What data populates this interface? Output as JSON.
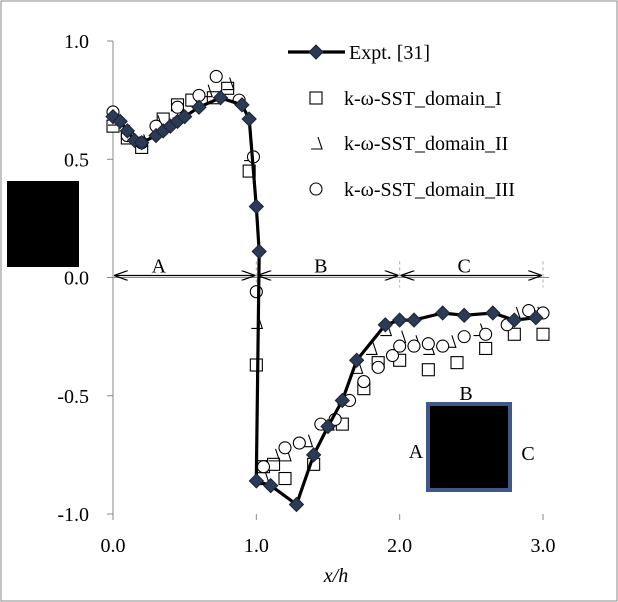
{
  "chart_data": {
    "type": "scatter",
    "xlabel": "x/h",
    "ylabel": "",
    "xlim": [
      0.0,
      3.0
    ],
    "ylim": [
      -1.0,
      1.0
    ],
    "x_ticks": [
      "0.0",
      "1.0",
      "2.0",
      "3.0"
    ],
    "y_ticks": [
      "1.0",
      "0.5",
      "0.0",
      "-0.5",
      "-1.0"
    ],
    "grid": false,
    "legend_position": "top-right",
    "series": [
      {
        "name": "Expt. [31]",
        "style": "line-diamond",
        "points": [
          [
            0.0,
            0.68
          ],
          [
            0.05,
            0.66
          ],
          [
            0.1,
            0.62
          ],
          [
            0.15,
            0.58
          ],
          [
            0.2,
            0.57
          ],
          [
            0.3,
            0.6
          ],
          [
            0.35,
            0.62
          ],
          [
            0.4,
            0.64
          ],
          [
            0.45,
            0.66
          ],
          [
            0.5,
            0.68
          ],
          [
            0.6,
            0.72
          ],
          [
            0.75,
            0.76
          ],
          [
            0.9,
            0.73
          ],
          [
            0.95,
            0.67
          ],
          [
            1.0,
            0.3
          ],
          [
            1.02,
            0.11
          ],
          [
            1.0,
            -0.86
          ],
          [
            1.1,
            -0.88
          ],
          [
            1.28,
            -0.96
          ],
          [
            1.4,
            -0.75
          ],
          [
            1.5,
            -0.63
          ],
          [
            1.6,
            -0.52
          ],
          [
            1.7,
            -0.35
          ],
          [
            1.9,
            -0.2
          ],
          [
            2.0,
            -0.18
          ],
          [
            2.1,
            -0.18
          ],
          [
            2.3,
            -0.15
          ],
          [
            2.45,
            -0.16
          ],
          [
            2.65,
            -0.15
          ],
          [
            2.8,
            -0.18
          ],
          [
            2.95,
            -0.17
          ]
        ]
      },
      {
        "name": "k-ω-SST_domain_I",
        "style": "square",
        "points": [
          [
            0.0,
            0.64
          ],
          [
            0.1,
            0.59
          ],
          [
            0.2,
            0.55
          ],
          [
            0.35,
            0.67
          ],
          [
            0.45,
            0.73
          ],
          [
            0.55,
            0.75
          ],
          [
            0.7,
            0.76
          ],
          [
            0.8,
            0.8
          ],
          [
            0.95,
            0.45
          ],
          [
            1.0,
            -0.37
          ],
          [
            1.05,
            -0.8
          ],
          [
            1.12,
            -0.79
          ],
          [
            1.2,
            -0.85
          ],
          [
            1.4,
            -0.79
          ],
          [
            1.6,
            -0.62
          ],
          [
            1.75,
            -0.47
          ],
          [
            1.85,
            -0.36
          ],
          [
            2.0,
            -0.35
          ],
          [
            2.2,
            -0.39
          ],
          [
            2.4,
            -0.36
          ],
          [
            2.6,
            -0.3
          ],
          [
            2.8,
            -0.24
          ],
          [
            3.0,
            -0.24
          ]
        ]
      },
      {
        "name": "k-ω-SST_domain_II",
        "style": "triangle",
        "points": [
          [
            0.0,
            0.67
          ],
          [
            0.1,
            0.62
          ],
          [
            0.2,
            0.58
          ],
          [
            0.3,
            0.66
          ],
          [
            0.45,
            0.7
          ],
          [
            0.55,
            0.75
          ],
          [
            0.65,
            0.79
          ],
          [
            0.8,
            0.82
          ],
          [
            0.95,
            0.52
          ],
          [
            1.0,
            -0.19
          ],
          [
            1.05,
            -0.85
          ],
          [
            1.12,
            -0.75
          ],
          [
            1.2,
            -0.75
          ],
          [
            1.35,
            -0.69
          ],
          [
            1.5,
            -0.62
          ],
          [
            1.6,
            -0.51
          ],
          [
            1.7,
            -0.38
          ],
          [
            1.8,
            -0.3
          ],
          [
            1.9,
            -0.22
          ],
          [
            2.0,
            -0.25
          ],
          [
            2.1,
            -0.27
          ],
          [
            2.2,
            -0.3
          ],
          [
            2.35,
            -0.27
          ],
          [
            2.55,
            -0.22
          ],
          [
            2.8,
            -0.15
          ],
          [
            2.95,
            -0.15
          ]
        ]
      },
      {
        "name": "k-ω-SST_domain_III",
        "style": "circle",
        "points": [
          [
            0.0,
            0.7
          ],
          [
            0.1,
            0.6
          ],
          [
            0.2,
            0.57
          ],
          [
            0.3,
            0.64
          ],
          [
            0.45,
            0.72
          ],
          [
            0.6,
            0.77
          ],
          [
            0.72,
            0.85
          ],
          [
            0.88,
            0.75
          ],
          [
            0.98,
            0.51
          ],
          [
            1.0,
            -0.06
          ],
          [
            1.05,
            -0.8
          ],
          [
            1.2,
            -0.72
          ],
          [
            1.3,
            -0.7
          ],
          [
            1.45,
            -0.62
          ],
          [
            1.55,
            -0.6
          ],
          [
            1.65,
            -0.52
          ],
          [
            1.75,
            -0.44
          ],
          [
            1.85,
            -0.38
          ],
          [
            1.95,
            -0.33
          ],
          [
            2.0,
            -0.29
          ],
          [
            2.1,
            -0.29
          ],
          [
            2.2,
            -0.28
          ],
          [
            2.3,
            -0.29
          ],
          [
            2.45,
            -0.25
          ],
          [
            2.6,
            -0.24
          ],
          [
            2.75,
            -0.2
          ],
          [
            2.9,
            -0.14
          ],
          [
            3.0,
            -0.15
          ]
        ]
      }
    ],
    "regions": [
      {
        "label": "A",
        "from": 0.0,
        "to": 1.0
      },
      {
        "label": "B",
        "from": 1.0,
        "to": 2.0
      },
      {
        "label": "C",
        "from": 2.0,
        "to": 3.0
      }
    ],
    "inset_labels": [
      "A",
      "B",
      "C"
    ]
  }
}
